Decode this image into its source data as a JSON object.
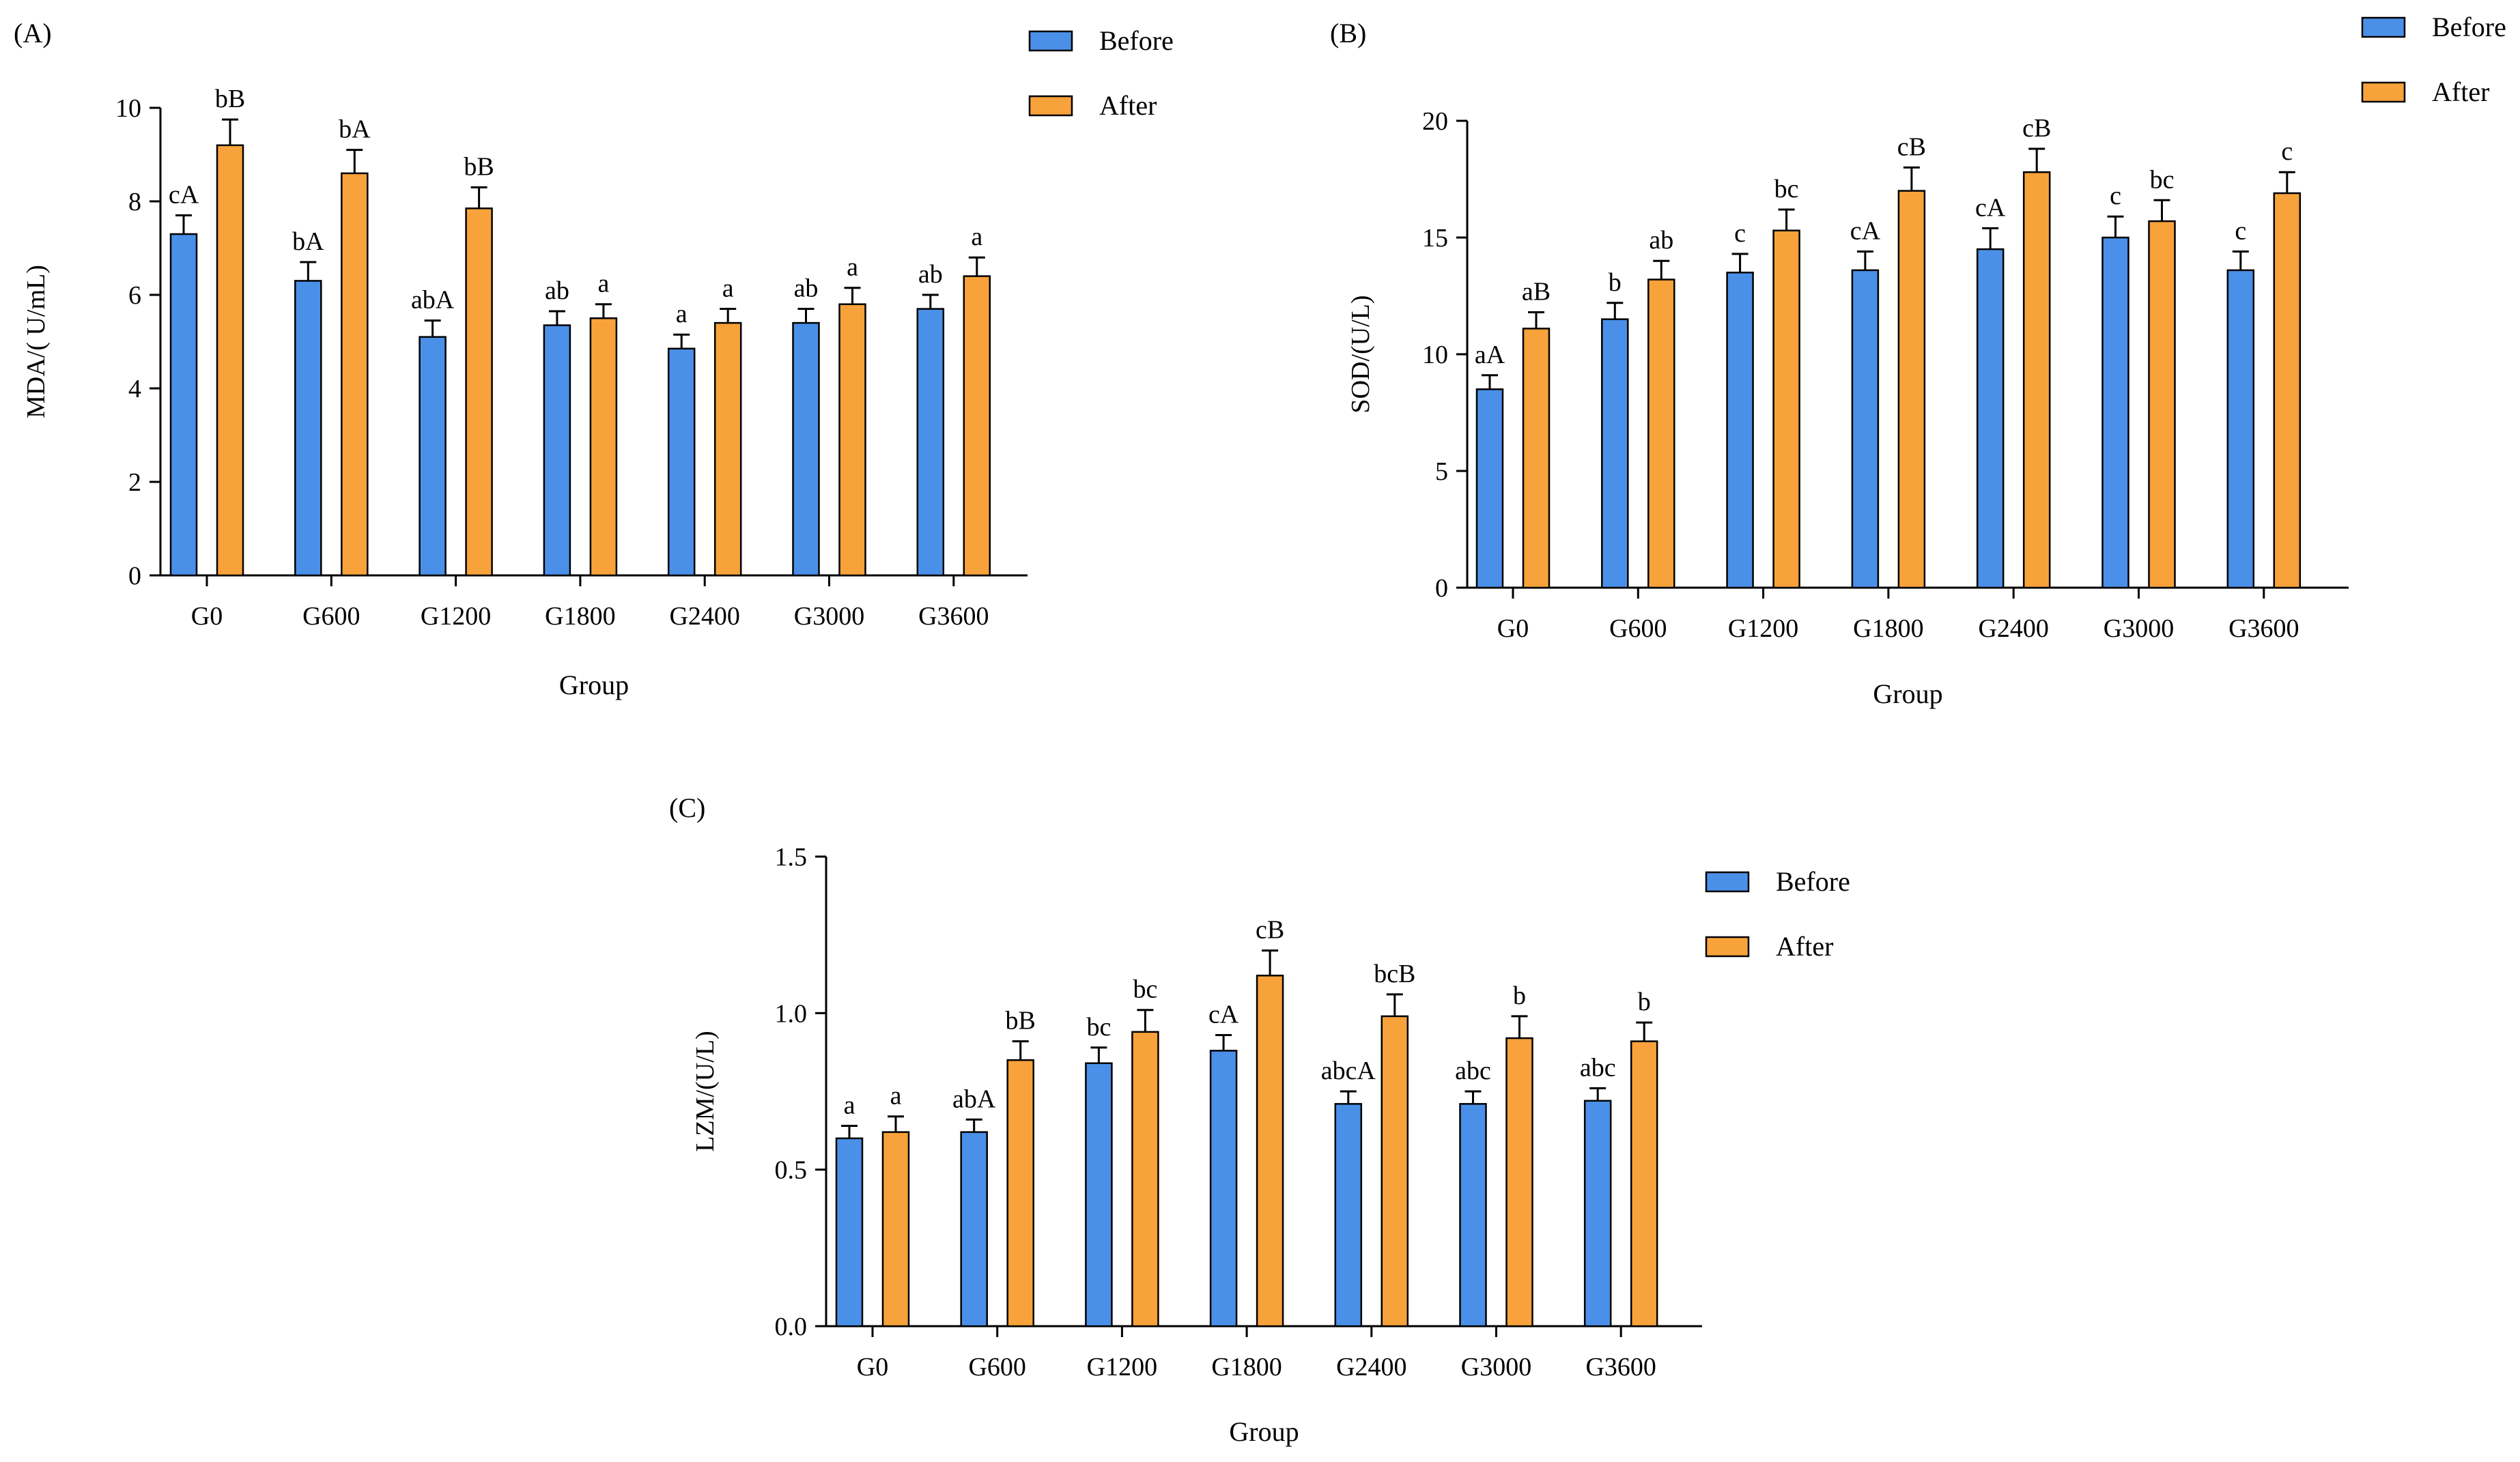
{
  "colors": {
    "before": "#4A90E8",
    "after": "#F7A23A",
    "axis": "#000000"
  },
  "legend": {
    "before": "Before",
    "after": "After"
  },
  "chart_data": [
    {
      "id": "A",
      "panel_label": "(A)",
      "type": "bar",
      "ylabel": "MDA/(  U/mL)",
      "xlabel": "Group",
      "ylim": [
        0,
        10
      ],
      "yticks": [
        0,
        2,
        4,
        6,
        8,
        10
      ],
      "ytick_labels": [
        "0",
        "2",
        "4",
        "6",
        "8",
        "10"
      ],
      "categories": [
        "G0",
        "G600",
        "G1200",
        "G1800",
        "G2400",
        "G3000",
        "G3600"
      ],
      "legend_position": "top-right",
      "series": [
        {
          "name": "Before",
          "values": [
            7.3,
            6.3,
            5.1,
            5.35,
            4.85,
            5.4,
            5.7
          ],
          "errors": [
            0.4,
            0.4,
            0.35,
            0.3,
            0.3,
            0.3,
            0.3
          ],
          "labels": [
            "cA",
            "bA",
            "abA",
            "ab",
            "a",
            "ab",
            "ab"
          ]
        },
        {
          "name": "After",
          "values": [
            9.2,
            8.6,
            7.85,
            5.5,
            5.4,
            5.8,
            6.4
          ],
          "errors": [
            0.55,
            0.5,
            0.45,
            0.3,
            0.3,
            0.35,
            0.4
          ],
          "labels": [
            "bB",
            "bA",
            "bB",
            "a",
            "a",
            "a",
            "a"
          ]
        }
      ]
    },
    {
      "id": "B",
      "panel_label": "(B)",
      "type": "bar",
      "ylabel": "SOD/(U/L)",
      "xlabel": "Group",
      "ylim": [
        0,
        20
      ],
      "yticks": [
        0,
        5,
        10,
        15,
        20
      ],
      "ytick_labels": [
        "0",
        "5",
        "10",
        "15",
        "20"
      ],
      "categories": [
        "G0",
        "G600",
        "G1200",
        "G1800",
        "G2400",
        "G3000",
        "G3600"
      ],
      "legend_position": "top-right",
      "series": [
        {
          "name": "Before",
          "values": [
            8.5,
            11.5,
            13.5,
            13.6,
            14.5,
            15.0,
            13.6
          ],
          "errors": [
            0.6,
            0.7,
            0.8,
            0.8,
            0.9,
            0.9,
            0.8
          ],
          "labels": [
            "aA",
            "b",
            "c",
            "cA",
            "cA",
            "c",
            "c"
          ]
        },
        {
          "name": "After",
          "values": [
            11.1,
            13.2,
            15.3,
            17.0,
            17.8,
            15.7,
            16.9
          ],
          "errors": [
            0.7,
            0.8,
            0.9,
            1.0,
            1.0,
            0.9,
            0.9
          ],
          "labels": [
            "aB",
            "ab",
            "bc",
            "cB",
            "cB",
            "bc",
            "c"
          ]
        }
      ]
    },
    {
      "id": "C",
      "panel_label": "(C)",
      "type": "bar",
      "ylabel": "LZM/(U/L)",
      "xlabel": "Group",
      "ylim": [
        0,
        1.5
      ],
      "yticks": [
        0,
        0.5,
        1.0,
        1.5
      ],
      "ytick_labels": [
        "0.0",
        "0.5",
        "1.0",
        "1.5"
      ],
      "categories": [
        "G0",
        "G600",
        "G1200",
        "G1800",
        "G2400",
        "G3000",
        "G3600"
      ],
      "legend_position": "top-right",
      "series": [
        {
          "name": "Before",
          "values": [
            0.6,
            0.62,
            0.84,
            0.88,
            0.71,
            0.71,
            0.72
          ],
          "errors": [
            0.04,
            0.04,
            0.05,
            0.05,
            0.04,
            0.04,
            0.04
          ],
          "labels": [
            "a",
            "abA",
            "bc",
            "cA",
            "abcA",
            "abc",
            "abc"
          ]
        },
        {
          "name": "After",
          "values": [
            0.62,
            0.85,
            0.94,
            1.12,
            0.99,
            0.92,
            0.91
          ],
          "errors": [
            0.05,
            0.06,
            0.07,
            0.08,
            0.07,
            0.07,
            0.06
          ],
          "labels": [
            "a",
            "bB",
            "bc",
            "cB",
            "bcB",
            "b",
            "b"
          ]
        }
      ]
    }
  ]
}
